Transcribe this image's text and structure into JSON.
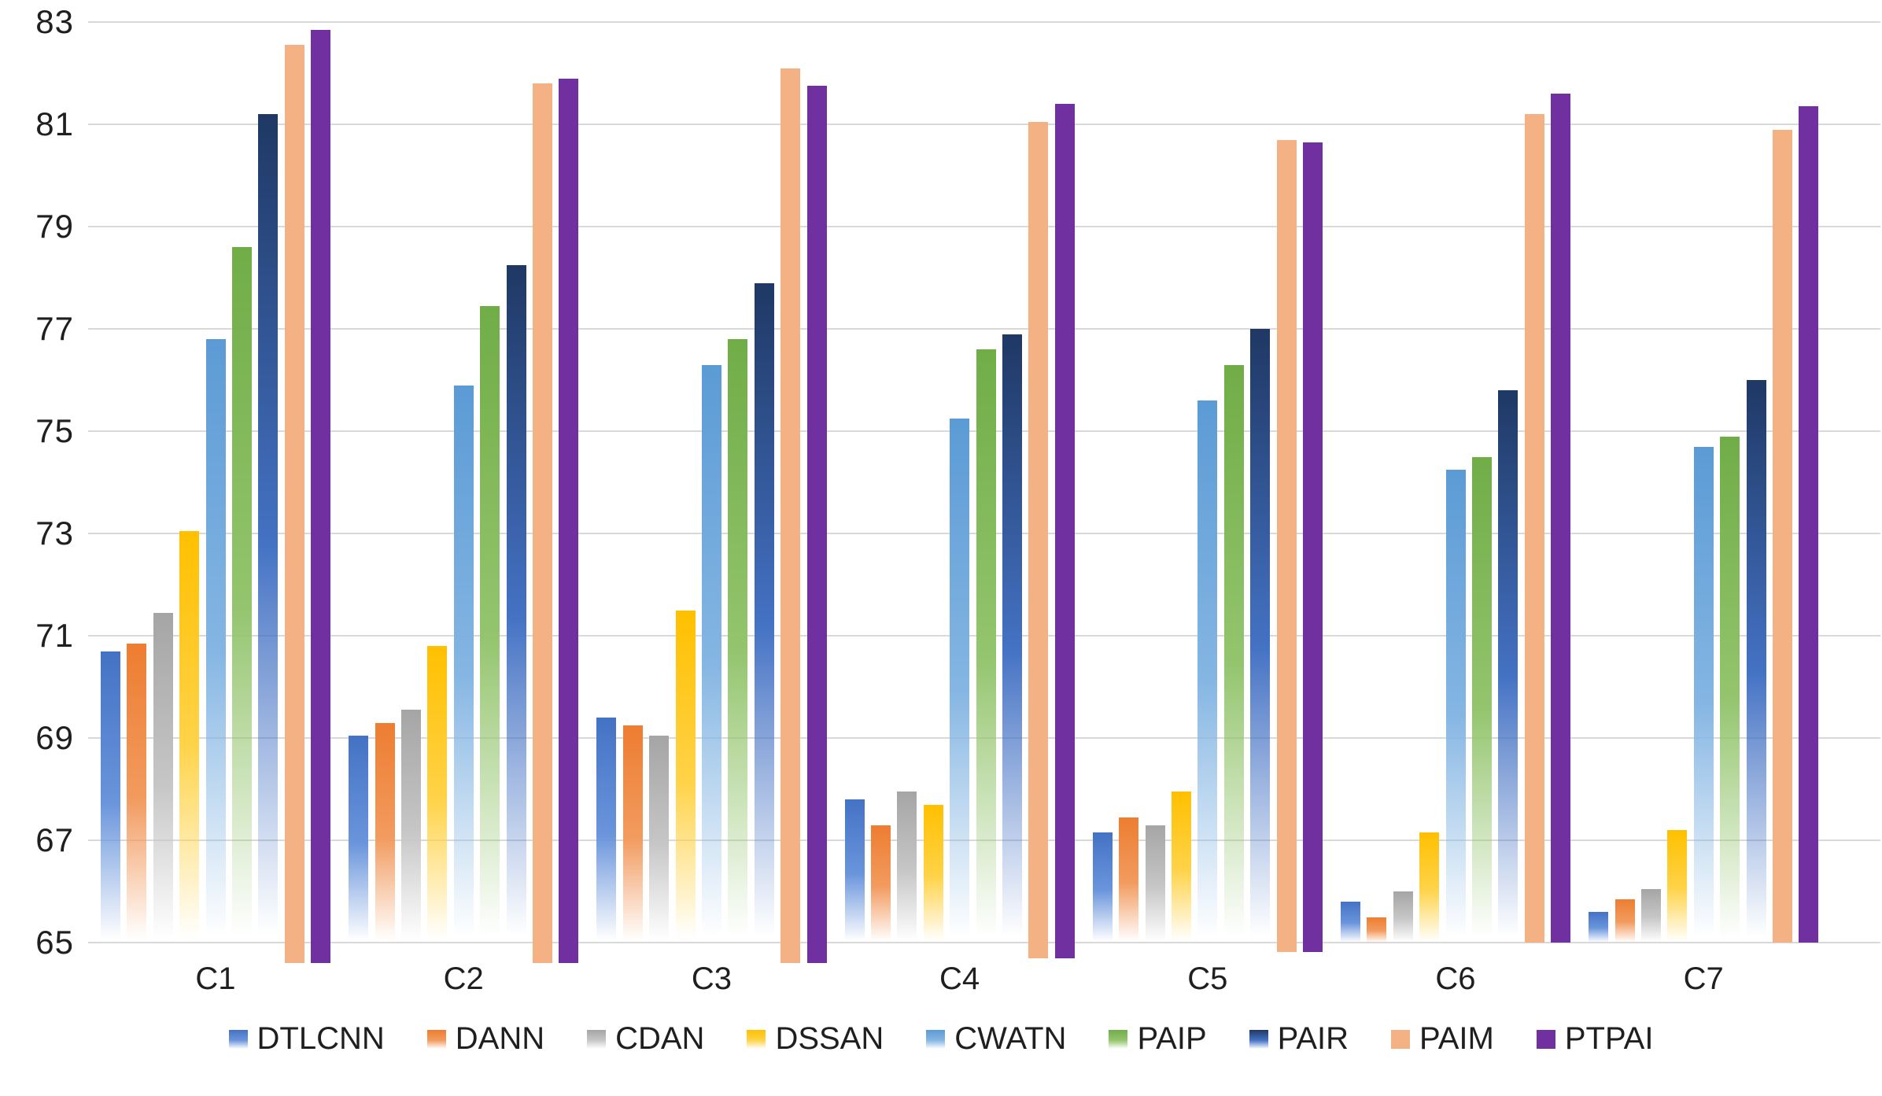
{
  "chart_data": {
    "type": "bar",
    "title": "",
    "xlabel": "",
    "ylabel": "",
    "categories": [
      "C1",
      "C2",
      "C3",
      "C4",
      "C5",
      "C6",
      "C7"
    ],
    "series": [
      {
        "name": "DTLCNN",
        "color": "#4472C4",
        "color_light": "#6A95DC",
        "fill": "gradient",
        "values": [
          70.7,
          69.05,
          69.4,
          67.8,
          67.15,
          65.8,
          65.6
        ]
      },
      {
        "name": "DANN",
        "color": "#ED7D31",
        "color_light": "#F29B5F",
        "fill": "gradient",
        "values": [
          70.85,
          69.3,
          69.25,
          67.3,
          67.45,
          65.5,
          65.85
        ]
      },
      {
        "name": "CDAN",
        "color": "#A5A5A5",
        "color_light": "#C6C6C6",
        "fill": "gradient",
        "values": [
          71.45,
          69.55,
          69.05,
          67.95,
          67.3,
          66.0,
          66.05
        ]
      },
      {
        "name": "DSSAN",
        "color": "#FFC000",
        "color_light": "#FFD349",
        "fill": "gradient",
        "values": [
          73.05,
          70.8,
          71.5,
          67.7,
          67.95,
          67.15,
          67.2
        ]
      },
      {
        "name": "CWATN",
        "color": "#5B9BD5",
        "color_light": "#85B6E3",
        "fill": "gradient",
        "values": [
          76.8,
          75.9,
          76.3,
          75.25,
          75.6,
          74.25,
          74.7
        ]
      },
      {
        "name": "PAIP",
        "color": "#70AD47",
        "color_light": "#94C56E",
        "fill": "gradient",
        "values": [
          78.6,
          77.45,
          76.8,
          76.6,
          76.3,
          74.5,
          74.9
        ]
      },
      {
        "name": "PAIR",
        "color": "#1F3864",
        "color_light": "#4472C4",
        "fill": "gradient",
        "values": [
          81.2,
          78.25,
          77.9,
          76.9,
          77.0,
          75.8,
          76.0
        ]
      },
      {
        "name": "PAIM",
        "color": "#F4B183",
        "color_light": "#F4B183",
        "fill": "solid",
        "values": [
          82.55,
          81.8,
          82.1,
          81.05,
          80.7,
          81.2,
          80.9
        ]
      },
      {
        "name": "PTPAI",
        "color": "#7030A0",
        "color_light": "#7030A0",
        "fill": "solid",
        "values": [
          82.85,
          81.9,
          81.75,
          81.4,
          80.65,
          81.6,
          81.35
        ]
      }
    ],
    "y_axis": {
      "min": 65,
      "max": 83,
      "step": 2,
      "ticks": [
        "65",
        "67",
        "69",
        "71",
        "73",
        "75",
        "77",
        "79",
        "81",
        "83"
      ]
    },
    "grid": true,
    "legend_position": "bottom"
  },
  "colors": {
    "background": "#FFFFFF",
    "gridline": "#D9D9D9",
    "text": "#1F1F1F"
  }
}
